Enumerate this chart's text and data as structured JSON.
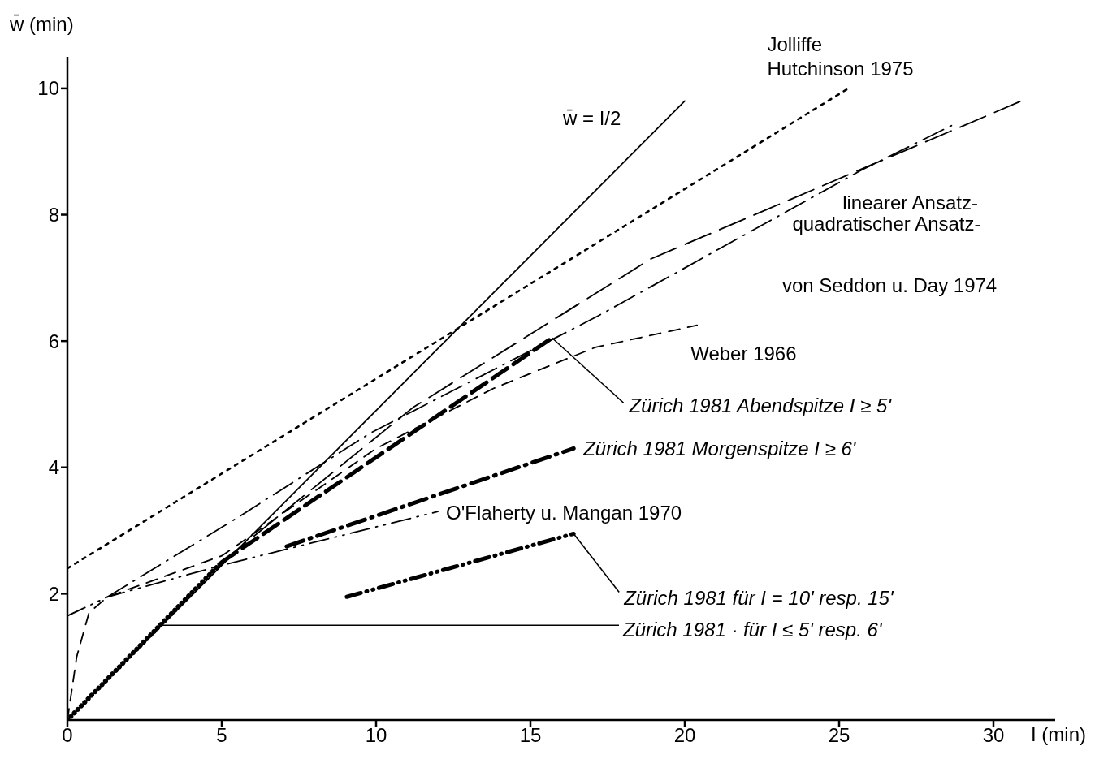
{
  "chart_data": {
    "type": "line",
    "xlabel": "I (min)",
    "ylabel": "w̄ (min)",
    "xlim": [
      0,
      32
    ],
    "ylim": [
      0,
      10.5
    ],
    "xticks": [
      0,
      5,
      10,
      15,
      20,
      25,
      30
    ],
    "yticks": [
      2,
      4,
      6,
      8,
      10
    ],
    "annotations": [
      "von Seddon u. Day 1974"
    ],
    "series": [
      {
        "name": "w̄ = I/2",
        "color": "#000000",
        "line_style": "solid",
        "x": [
          0,
          20
        ],
        "values": [
          0,
          9.8
        ]
      },
      {
        "name": "Jolliffe\nHutchinson 1975",
        "color": "#000000",
        "line_style": "dotted",
        "x": [
          0,
          25.3
        ],
        "values": [
          2.4,
          10
        ]
      },
      {
        "name": "linearer Ansatz-",
        "color": "#000000",
        "line_style": "longdash",
        "x": [
          0,
          5,
          11.2,
          18.9,
          30.9
        ],
        "values": [
          0,
          2.5,
          4.95,
          7.3,
          9.8
        ]
      },
      {
        "name": "quadratischer Ansatz-",
        "color": "#000000",
        "line_style": "dashdot",
        "x": [
          1.3,
          5.5,
          9.8,
          17.2,
          25.7,
          28.8
        ],
        "values": [
          1.95,
          3.2,
          4.54,
          6.4,
          8.7,
          9.45
        ]
      },
      {
        "name": "Weber 1966",
        "color": "#000000",
        "line_style": "dashed",
        "x": [
          0,
          0.3,
          0.7,
          1.3,
          5,
          10,
          13.8,
          17.1,
          20.4
        ],
        "values": [
          0,
          1,
          1.7,
          1.95,
          2.6,
          4.3,
          5.25,
          5.9,
          6.25
        ]
      },
      {
        "name": "Zürich 1981  Abendspitze I ≥ 5'",
        "color": "#000000",
        "line_style": "bold-dashed",
        "x": [
          5,
          15.7
        ],
        "values": [
          2.5,
          6.05
        ]
      },
      {
        "name": "Zürich 1981  Morgenspitze I ≥ 6'",
        "color": "#000000",
        "line_style": "bold-dashdot",
        "x": [
          7.1,
          16.4
        ],
        "values": [
          2.75,
          4.3
        ]
      },
      {
        "name": "O'Flaherty u. Mangan 1970",
        "color": "#000000",
        "line_style": "dashdotdot",
        "x": [
          0,
          1.3,
          5,
          12
        ],
        "values": [
          1.65,
          1.95,
          2.45,
          3.3
        ]
      },
      {
        "name": "Zürich 1981  für I = 10' resp. 15'",
        "color": "#000000",
        "line_style": "bold-dashdotdot",
        "x": [
          9.05,
          16.4
        ],
        "values": [
          1.95,
          2.95
        ]
      },
      {
        "name": "Zürich 1981 · für I ≤ 5' resp. 6'",
        "color": "#000000",
        "line_style": "bold-dotted",
        "x": [
          0,
          3,
          5
        ],
        "values": [
          0,
          1.5,
          2.5
        ]
      }
    ]
  }
}
